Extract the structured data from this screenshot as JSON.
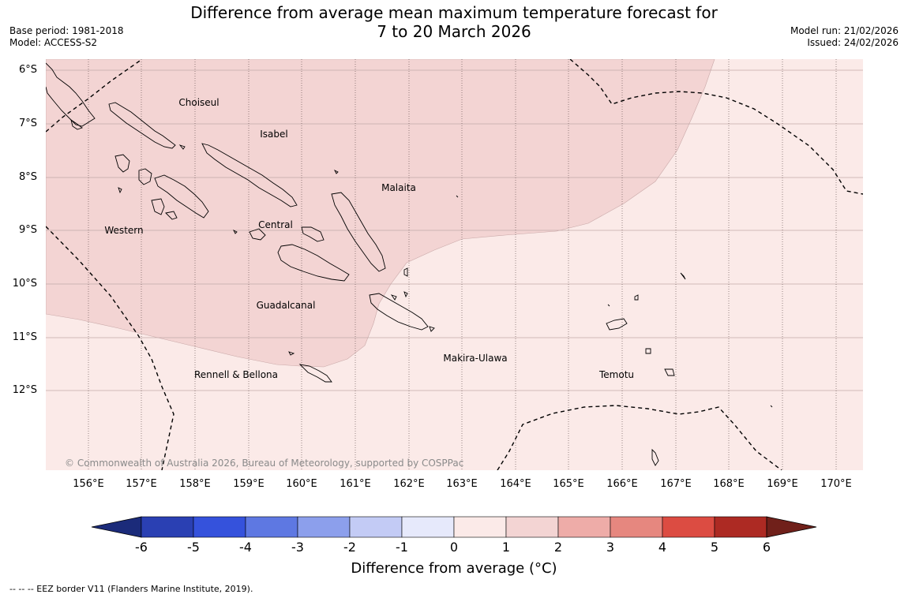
{
  "header": {
    "title_line1": "Difference from average mean maximum temperature forecast for",
    "title_line2": "7 to 20 March 2026",
    "base_period": "Base period: 1981-2018",
    "model": "Model: ACCESS-S2",
    "model_run": "Model run: 21/02/2026",
    "issued": "Issued: 24/02/2026"
  },
  "map": {
    "lat_ticks": [
      "6°S",
      "7°S",
      "8°S",
      "9°S",
      "10°S",
      "11°S",
      "12°S"
    ],
    "lon_ticks": [
      "156°E",
      "157°E",
      "158°E",
      "159°E",
      "160°E",
      "161°E",
      "162°E",
      "163°E",
      "164°E",
      "165°E",
      "166°E",
      "167°E",
      "168°E",
      "169°E",
      "170°E"
    ],
    "regions": [
      "Choiseul",
      "Isabel",
      "Malaita",
      "Western",
      "Central",
      "Guadalcanal",
      "Makira-Ulawa",
      "Rennell & Bellona",
      "Temotu"
    ],
    "copyright": "© Commonwealth of Australia 2026, Bureau of Meteorology, supported by COSPPac",
    "anomaly_fill_colors": {
      "0_to_1": "#fbeae8",
      "1_to_2": "#f3d4d3"
    }
  },
  "colorbar": {
    "colors": [
      "#1b2b7a",
      "#2a40b3",
      "#3552dc",
      "#5e78e2",
      "#8c9fec",
      "#c3cbf5",
      "#e6e9fb",
      "#fbeae8",
      "#f3d4d3",
      "#eeaca8",
      "#e6877f",
      "#dc4c42",
      "#ad2a23",
      "#70201a"
    ],
    "tick_labels": [
      "-6",
      "-5",
      "-4",
      "-3",
      "-2",
      "-1",
      "0",
      "1",
      "2",
      "3",
      "4",
      "5",
      "6"
    ],
    "title": "Difference from average (°C)"
  },
  "footnote": "--  --  -- EEZ border V11 (Flanders Marine Institute, 2019)."
}
